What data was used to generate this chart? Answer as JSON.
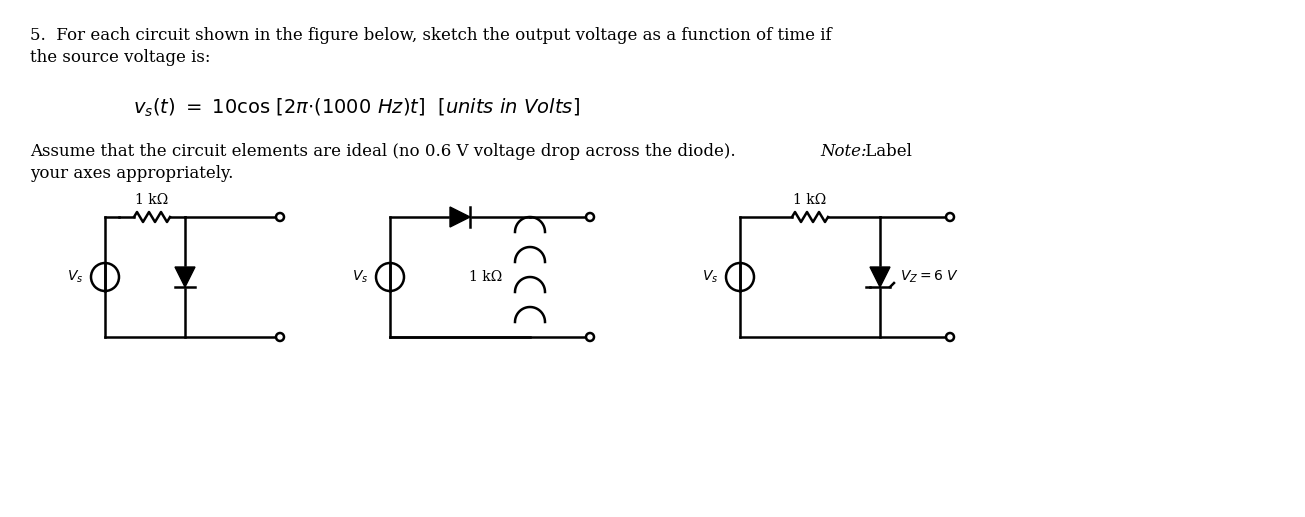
{
  "background_color": "#ffffff",
  "title_text": "5.  For each circuit shown in the figure below, sketch the output voltage as a function of time if\nthe source voltage is:",
  "equation": "v_s(t)  =  10cos [2π·(1000 Hz)t]  [units in Volts]",
  "body_text": "Assume that the circuit elements are ideal (no 0.6 V voltage drop across the diode).  Note:  Label\nyour axes appropriately.",
  "fig_width": 13.05,
  "fig_height": 5.17,
  "font_size_body": 12,
  "font_size_eq": 13
}
